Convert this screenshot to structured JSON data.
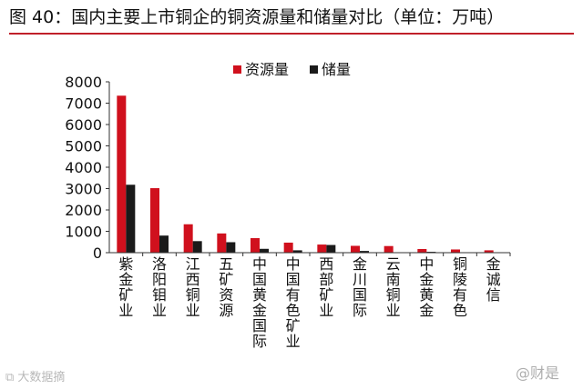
{
  "title": "图 40：国内主要上市铜企的铜资源量和储量对比（单位：万吨）",
  "watermark_left": "⧉ 大数据摘",
  "watermark_right": "@财是",
  "colors": {
    "resource": "#d0101d",
    "reserve": "#1a1a1a",
    "accent": "#c0202a"
  },
  "chart_data": {
    "type": "bar",
    "title": "",
    "xlabel": "",
    "ylabel": "",
    "ylim": [
      0,
      8000
    ],
    "yticks": [
      0,
      1000,
      2000,
      3000,
      4000,
      5000,
      6000,
      7000,
      8000
    ],
    "grid": false,
    "legend": "top",
    "categories": [
      "紫金矿业",
      "洛阳钼业",
      "江西铜业",
      "五矿资源",
      "中国黄金国际",
      "中国有色矿业",
      "西部矿业",
      "金川国际",
      "云南铜业",
      "中金黄金",
      "铜陵有色",
      "金诚信"
    ],
    "series": [
      {
        "name": "资源量",
        "values": [
          7350,
          3020,
          1330,
          900,
          680,
          470,
          380,
          320,
          310,
          170,
          150,
          110
        ]
      },
      {
        "name": "储量",
        "values": [
          3180,
          800,
          540,
          490,
          180,
          110,
          360,
          80,
          0,
          40,
          0,
          0
        ]
      }
    ]
  }
}
